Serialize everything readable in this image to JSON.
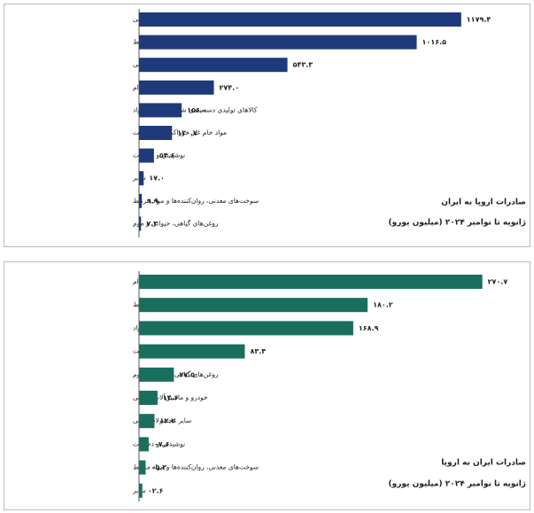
{
  "chart_data": [
    {
      "type": "barh",
      "title": "صادرات اروپا به ایران",
      "subtitle": "ژانویه تا نوامبر ۲۰۲۴ (میلیون یورو)",
      "color": "#1f3a7a",
      "categories": [
        "خودرو و ماشین‌آلات صنعتی",
        "مواد شیمیایی و مواد مرتبط",
        "سایر محصولات نهایی",
        "مواد غذایی و دام",
        "کالاهای تولیدی دسته‌بندی شده بر اساس مواد",
        "مواد خام غیر خوراکی، غیر سوخت",
        "نوشیدنی و دخانیات",
        "سایر",
        "سوخت‌های معدنی، روان‌کننده‌ها و مواد مرتبط",
        "روغن‌های گیاهی، حیوانی و موم"
      ],
      "values": [
        1179.4,
        1016.5,
        543.3,
        274.0,
        156.0,
        120.7,
        54.6,
        17.0,
        9.9,
        7.3
      ],
      "value_labels": [
        "۱۱۷۹.۴",
        "۱۰۱۶.۵",
        "۵۴۳.۳",
        "۲۷۴.۰",
        "۱۵۶.۰",
        "۱۲۰.۷",
        "۵۴.۶",
        "۱۷.۰",
        "۹.۹",
        "۷.۳"
      ],
      "xlim": [
        0,
        1300
      ]
    },
    {
      "type": "barh",
      "title": "صادرات ایران به اروپا",
      "subtitle": "ژانویه تا نوامبر ۲۰۲۴ (میلیون یورو)",
      "color": "#1a6e5e",
      "categories": [
        "مواد غذایی و دام",
        "مواد شیمیایی و مواد مرتبط",
        "کالاهای تولیدی دسته‌بندی شده بر اساس مواد",
        "مواد خام غیر خوراکی، غیر سوخت",
        "روغن‌های گیاهی، حیوانی و موم",
        "خودرو و ماشین‌آلات صنعتی",
        "سایر محصولات نهایی",
        "نوشیدنی و دخانیات",
        "سوخت‌های معدنی، روان‌کننده‌ها و مواد مرتبط",
        "سایر"
      ],
      "values": [
        270.7,
        180.2,
        168.9,
        83.4,
        27.5,
        14.6,
        12.2,
        7.6,
        5.2,
        2.6
      ],
      "value_labels": [
        "۲۷۰.۷",
        "۱۸۰.۲",
        "۱۶۸.۹",
        "۸۳.۴",
        "۲۷.۵",
        "۱۴.۶",
        "۱۲.۲",
        "۰۷.۶",
        "۰۵.۲",
        "۰۲.۶"
      ],
      "xlim": [
        0,
        280
      ]
    }
  ]
}
